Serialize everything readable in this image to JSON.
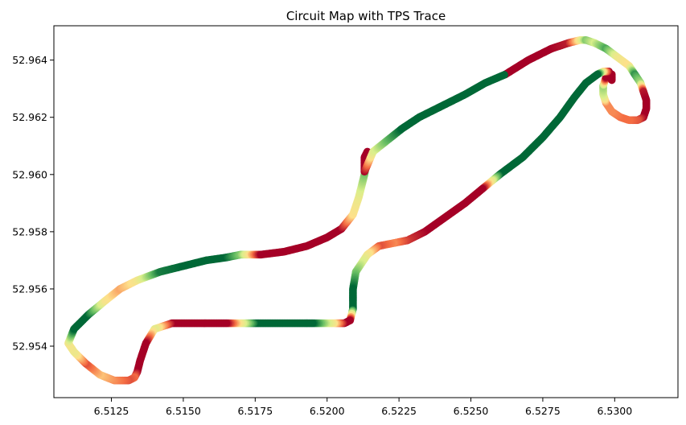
{
  "chart_data": {
    "type": "scatter",
    "title": "Circuit Map with TPS Trace",
    "xlabel": "",
    "ylabel": "",
    "xlim": [
      6.5105,
      6.5322
    ],
    "ylim": [
      52.9522,
      52.9652
    ],
    "xticks": [
      6.5125,
      6.515,
      6.5175,
      6.52,
      6.5225,
      6.525,
      6.5275,
      6.53
    ],
    "xtick_labels": [
      "6.5125",
      "6.5150",
      "6.5175",
      "6.5200",
      "6.5225",
      "6.5250",
      "6.5275",
      "6.5300"
    ],
    "yticks": [
      52.954,
      52.956,
      52.958,
      52.96,
      52.962,
      52.964
    ],
    "ytick_labels": [
      "52.954",
      "52.956",
      "52.958",
      "52.960",
      "52.962",
      "52.964"
    ],
    "colormap": "RdYlGn",
    "colormap_stops": [
      "#a50026",
      "#f46d43",
      "#fee08b",
      "#d9ef8b",
      "#66bd63",
      "#006837"
    ],
    "grid": false,
    "legend": "none",
    "series": [
      {
        "x": [
          6.5262,
          6.527,
          6.5278,
          6.5284,
          6.5288,
          6.529,
          6.5293,
          6.5297,
          6.5301,
          6.5305,
          6.5307,
          6.5309,
          6.531,
          6.5311,
          6.5311,
          6.531,
          6.5308,
          6.5305,
          6.5302,
          6.5299,
          6.5297,
          6.5296,
          6.5296,
          6.5297,
          6.5299,
          6.5299,
          6.5298,
          6.5296,
          6.5294,
          6.529,
          6.5286,
          6.5281,
          6.5275,
          6.5268,
          6.526,
          6.5254,
          6.5248,
          6.5241,
          6.5234,
          6.5228,
          6.5223,
          6.5218,
          6.5214,
          6.521,
          6.5209,
          6.5209,
          6.5208,
          6.5206,
          6.5202,
          6.5195,
          6.5185,
          6.5175,
          6.5165,
          6.5155,
          6.5146,
          6.514,
          6.5137,
          6.5135,
          6.5134,
          6.5133,
          6.5131,
          6.5126,
          6.5121,
          6.5116,
          6.5112,
          6.511,
          6.5112,
          6.5117,
          6.5123,
          6.5128,
          6.5134,
          6.5142,
          6.515,
          6.5158,
          6.5165,
          6.517,
          6.5177,
          6.5185,
          6.5193,
          6.52,
          6.5205,
          6.5209,
          6.5211,
          6.5213,
          6.5214,
          6.5214,
          6.5213,
          6.5213,
          6.5213,
          6.5216,
          6.5221,
          6.5226,
          6.5232,
          6.524,
          6.5248,
          6.5255,
          6.5262
        ],
        "y": [
          52.9635,
          52.964,
          52.9644,
          52.9646,
          52.9647,
          52.9647,
          52.9646,
          52.9644,
          52.9641,
          52.9638,
          52.9635,
          52.9632,
          52.9629,
          52.9626,
          52.9623,
          52.962,
          52.9619,
          52.9619,
          52.962,
          52.9622,
          52.9625,
          52.9628,
          52.9631,
          52.9634,
          52.9635,
          52.9633,
          52.9636,
          52.9636,
          52.9635,
          52.9632,
          52.9627,
          52.962,
          52.9613,
          52.9606,
          52.96,
          52.9595,
          52.959,
          52.9585,
          52.958,
          52.9577,
          52.9576,
          52.9575,
          52.9572,
          52.9566,
          52.956,
          52.9553,
          52.9549,
          52.9548,
          52.9548,
          52.9548,
          52.9548,
          52.9548,
          52.9548,
          52.9548,
          52.9548,
          52.9546,
          52.9541,
          52.9535,
          52.9531,
          52.9529,
          52.9528,
          52.9528,
          52.953,
          52.9534,
          52.9538,
          52.9541,
          52.9546,
          52.9551,
          52.9556,
          52.956,
          52.9563,
          52.9566,
          52.9568,
          52.957,
          52.9571,
          52.9572,
          52.9572,
          52.9573,
          52.9575,
          52.9578,
          52.9581,
          52.9586,
          52.9592,
          52.96,
          52.9606,
          52.9608,
          52.9606,
          52.9602,
          52.9601,
          52.9608,
          52.9612,
          52.9616,
          52.962,
          52.9624,
          52.9628,
          52.9632,
          52.9635
        ],
        "tps": [
          0.0,
          0.0,
          0.0,
          0.05,
          0.45,
          0.75,
          0.6,
          0.85,
          0.5,
          0.4,
          0.9,
          0.7,
          0.05,
          0.0,
          0.0,
          0.0,
          0.15,
          0.2,
          0.2,
          0.25,
          0.25,
          0.6,
          0.7,
          0.0,
          0.0,
          0.0,
          0.0,
          0.4,
          1.0,
          1.0,
          1.0,
          1.0,
          1.0,
          1.0,
          1.0,
          0.0,
          0.0,
          0.0,
          0.0,
          0.1,
          0.25,
          0.15,
          0.45,
          0.75,
          1.0,
          1.0,
          0.0,
          0.0,
          0.45,
          1.0,
          1.0,
          1.0,
          0.0,
          0.0,
          0.0,
          0.55,
          0.0,
          0.0,
          0.0,
          0.2,
          0.15,
          0.25,
          0.35,
          0.15,
          0.5,
          0.45,
          1.0,
          1.0,
          0.45,
          0.3,
          0.45,
          0.95,
          1.0,
          1.0,
          1.0,
          0.75,
          0.0,
          0.0,
          0.0,
          0.0,
          0.0,
          0.4,
          0.5,
          0.75,
          1.0,
          0.0,
          0.0,
          0.0,
          0.0,
          0.55,
          0.8,
          1.0,
          1.0,
          1.0,
          1.0,
          1.0,
          1.0
        ]
      }
    ]
  }
}
